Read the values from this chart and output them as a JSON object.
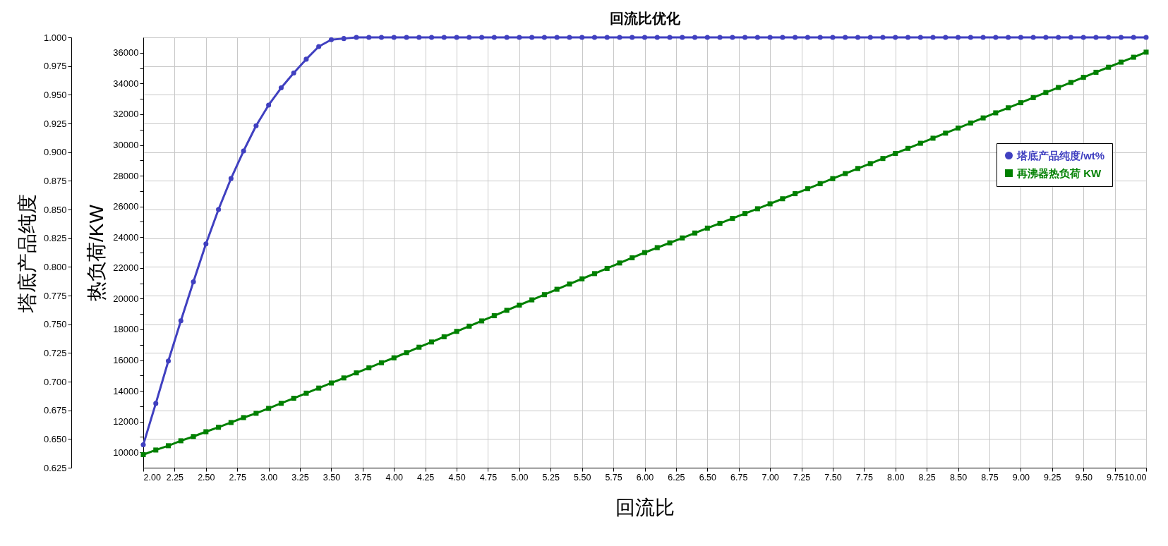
{
  "chart_data": {
    "type": "line",
    "title": "回流比优化",
    "xlabel": "回流比",
    "ylabel": "塔底产品纯度",
    "y2label": "热负荷/KW",
    "x": [
      2.0,
      2.1,
      2.2,
      2.3,
      2.4,
      2.5,
      2.6,
      2.7,
      2.8,
      2.9,
      3.0,
      3.1,
      3.2,
      3.3,
      3.4,
      3.5,
      3.6,
      3.7,
      3.8,
      3.9,
      4.0,
      4.1,
      4.2,
      4.3,
      4.4,
      4.5,
      4.6,
      4.7,
      4.8,
      4.9,
      5.0,
      5.1,
      5.2,
      5.3,
      5.4,
      5.5,
      5.6,
      5.7,
      5.8,
      5.9,
      6.0,
      6.1,
      6.2,
      6.3,
      6.4,
      6.5,
      6.6,
      6.7,
      6.8,
      6.9,
      7.0,
      7.1,
      7.2,
      7.3,
      7.4,
      7.5,
      7.6,
      7.7,
      7.8,
      7.9,
      8.0,
      8.1,
      8.2,
      8.3,
      8.4,
      8.5,
      8.6,
      8.7,
      8.8,
      8.9,
      9.0,
      9.1,
      9.2,
      9.3,
      9.4,
      9.5,
      9.6,
      9.7,
      9.8,
      9.9,
      10.0
    ],
    "series": [
      {
        "name": "塔底产品纯度/wt%",
        "color": "#4040c0",
        "marker": "circle",
        "values": [
          0.645,
          0.681,
          0.718,
          0.753,
          0.787,
          0.82,
          0.85,
          0.877,
          0.901,
          0.923,
          0.941,
          0.956,
          0.969,
          0.981,
          0.992,
          0.998,
          0.999,
          1.0,
          1.0,
          1.0,
          1.0,
          1.0,
          1.0,
          1.0,
          1.0,
          1.0,
          1.0,
          1.0,
          1.0,
          1.0,
          1.0,
          1.0,
          1.0,
          1.0,
          1.0,
          1.0,
          1.0,
          1.0,
          1.0,
          1.0,
          1.0,
          1.0,
          1.0,
          1.0,
          1.0,
          1.0,
          1.0,
          1.0,
          1.0,
          1.0,
          1.0,
          1.0,
          1.0,
          1.0,
          1.0,
          1.0,
          1.0,
          1.0,
          1.0,
          1.0,
          1.0,
          1.0,
          1.0,
          1.0,
          1.0,
          1.0,
          1.0,
          1.0,
          1.0,
          1.0,
          1.0,
          1.0,
          1.0,
          1.0,
          1.0,
          1.0,
          1.0,
          1.0,
          1.0,
          1.0,
          1.0
        ]
      },
      {
        "name": "再沸器热负荷 KW",
        "color": "#008000",
        "marker": "square",
        "axis": "y2",
        "values": [
          9850,
          10150,
          10430,
          10750,
          11030,
          11340,
          11630,
          11940,
          12260,
          12540,
          12860,
          13190,
          13520,
          13850,
          14180,
          14510,
          14840,
          15170,
          15500,
          15830,
          16150,
          16490,
          16840,
          17180,
          17520,
          17870,
          18210,
          18550,
          18890,
          19240,
          19580,
          19920,
          20260,
          20610,
          20950,
          21290,
          21630,
          21970,
          22320,
          22660,
          23000,
          23320,
          23630,
          23950,
          24270,
          24590,
          24900,
          25220,
          25540,
          25850,
          26170,
          26500,
          26830,
          27150,
          27480,
          27810,
          28140,
          28470,
          28790,
          29120,
          29450,
          29780,
          30110,
          30440,
          30770,
          31100,
          31430,
          31760,
          32090,
          32420,
          32750,
          33080,
          33410,
          33740,
          34070,
          34400,
          34730,
          35060,
          35390,
          35710,
          36040
        ]
      }
    ],
    "xlim": [
      2.0,
      10.0
    ],
    "xticks": [
      {
        "value": 2,
        "label": "2.00"
      },
      {
        "value": 2.25,
        "label": "2.25"
      },
      {
        "value": 2.5,
        "label": "2.50"
      },
      {
        "value": 2.75,
        "label": "2.75"
      },
      {
        "value": 3,
        "label": "3.00"
      },
      {
        "value": 3.25,
        "label": "3.25"
      },
      {
        "value": 3.5,
        "label": "3.50"
      },
      {
        "value": 3.75,
        "label": "3.75"
      },
      {
        "value": 4,
        "label": "4.00"
      },
      {
        "value": 4.25,
        "label": "4.25"
      },
      {
        "value": 4.5,
        "label": "4.50"
      },
      {
        "value": 4.75,
        "label": "4.75"
      },
      {
        "value": 5,
        "label": "5.00"
      },
      {
        "value": 5.25,
        "label": "5.25"
      },
      {
        "value": 5.5,
        "label": "5.50"
      },
      {
        "value": 5.75,
        "label": "5.75"
      },
      {
        "value": 6,
        "label": "6.00"
      },
      {
        "value": 6.25,
        "label": "6.25"
      },
      {
        "value": 6.5,
        "label": "6.50"
      },
      {
        "value": 6.75,
        "label": "6.75"
      },
      {
        "value": 7,
        "label": "7.00"
      },
      {
        "value": 7.25,
        "label": "7.25"
      },
      {
        "value": 7.5,
        "label": "7.50"
      },
      {
        "value": 7.75,
        "label": "7.75"
      },
      {
        "value": 8,
        "label": "8.00"
      },
      {
        "value": 8.25,
        "label": "8.25"
      },
      {
        "value": 8.5,
        "label": "8.50"
      },
      {
        "value": 8.75,
        "label": "8.75"
      },
      {
        "value": 9,
        "label": "9.00"
      },
      {
        "value": 9.25,
        "label": "9.25"
      },
      {
        "value": 9.5,
        "label": "9.50"
      },
      {
        "value": 9.75,
        "label": "9.75"
      },
      {
        "value": 10,
        "label": "10.00"
      }
    ],
    "ylim": [
      0.625,
      1.0
    ],
    "yticks": [
      0.625,
      {
        "value": 0.65,
        "label": "0.650"
      },
      0.675,
      {
        "value": 0.7,
        "label": "0.700"
      },
      0.725,
      {
        "value": 0.75,
        "label": "0.750"
      },
      0.775,
      {
        "value": 0.8,
        "label": "0.800"
      },
      0.825,
      {
        "value": 0.85,
        "label": "0.850"
      },
      0.875,
      {
        "value": 0.9,
        "label": "0.900"
      },
      0.925,
      {
        "value": 0.95,
        "label": "0.950"
      },
      0.975,
      {
        "value": 1,
        "label": "1.000"
      }
    ],
    "y2lim": [
      9000,
      37000
    ],
    "y2ticks": [
      10000,
      {
        "value": 11000,
        "label": null
      },
      12000,
      {
        "value": 13000,
        "label": null
      },
      14000,
      {
        "value": 15000,
        "label": null
      },
      16000,
      {
        "value": 17000,
        "label": null
      },
      18000,
      {
        "value": 19000,
        "label": null
      },
      20000,
      {
        "value": 21000,
        "label": null
      },
      22000,
      {
        "value": 23000,
        "label": null
      },
      24000,
      {
        "value": 25000,
        "label": null
      },
      26000,
      {
        "value": 27000,
        "label": null
      },
      28000,
      {
        "value": 29000,
        "label": null
      },
      30000,
      {
        "value": 31000,
        "label": null
      },
      32000,
      {
        "value": 33000,
        "label": null
      },
      34000,
      {
        "value": 35000,
        "label": null
      },
      36000
    ],
    "grid": true,
    "legend": "right",
    "line_style": "solid"
  }
}
